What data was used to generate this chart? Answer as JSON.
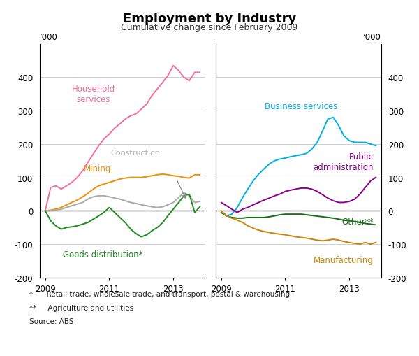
{
  "title": "Employment by Industry",
  "subtitle": "Cumulative change since February 2009",
  "ylabel": "’000",
  "ylim": [
    -200,
    500
  ],
  "yticks": [
    -200,
    -100,
    0,
    100,
    200,
    300,
    400
  ],
  "footnote1": "*      Retail trade, wholesale trade, and transport, postal & warehousing",
  "footnote2": "**     Agriculture and utilities",
  "footnote3": "Source: ABS",
  "left_panel": {
    "x_dates": [
      2009.0,
      2009.17,
      2009.33,
      2009.5,
      2009.67,
      2009.83,
      2010.0,
      2010.17,
      2010.33,
      2010.5,
      2010.67,
      2010.83,
      2011.0,
      2011.17,
      2011.33,
      2011.5,
      2011.67,
      2011.83,
      2012.0,
      2012.17,
      2012.33,
      2012.5,
      2012.67,
      2012.83,
      2013.0,
      2013.17,
      2013.33,
      2013.5,
      2013.67,
      2013.83
    ],
    "household_services": [
      0,
      70,
      75,
      65,
      75,
      85,
      100,
      120,
      145,
      170,
      195,
      215,
      230,
      248,
      260,
      275,
      285,
      290,
      305,
      320,
      345,
      365,
      385,
      405,
      435,
      420,
      400,
      390,
      415,
      415
    ],
    "mining": [
      0,
      2,
      5,
      10,
      18,
      25,
      32,
      42,
      52,
      65,
      75,
      80,
      85,
      90,
      95,
      98,
      100,
      100,
      100,
      102,
      105,
      108,
      110,
      108,
      105,
      103,
      100,
      98,
      108,
      108
    ],
    "construction": [
      0,
      0,
      2,
      5,
      10,
      15,
      20,
      25,
      35,
      42,
      45,
      45,
      42,
      38,
      35,
      30,
      25,
      22,
      18,
      15,
      12,
      10,
      12,
      18,
      25,
      40,
      55,
      45,
      25,
      28
    ],
    "goods_distribution": [
      0,
      -30,
      -45,
      -55,
      -50,
      -48,
      -45,
      -40,
      -35,
      -25,
      -15,
      -5,
      10,
      -5,
      -20,
      -35,
      -55,
      -68,
      -78,
      -72,
      -60,
      -50,
      -35,
      -15,
      5,
      25,
      45,
      50,
      -5,
      12
    ]
  },
  "right_panel": {
    "x_dates": [
      2009.0,
      2009.17,
      2009.33,
      2009.5,
      2009.67,
      2009.83,
      2010.0,
      2010.17,
      2010.33,
      2010.5,
      2010.67,
      2010.83,
      2011.0,
      2011.17,
      2011.33,
      2011.5,
      2011.67,
      2011.83,
      2012.0,
      2012.17,
      2012.33,
      2012.5,
      2012.67,
      2012.83,
      2013.0,
      2013.17,
      2013.33,
      2013.5,
      2013.67,
      2013.83
    ],
    "business_services": [
      -5,
      -15,
      -10,
      10,
      40,
      65,
      90,
      110,
      125,
      140,
      150,
      155,
      158,
      162,
      165,
      168,
      172,
      185,
      205,
      240,
      275,
      280,
      255,
      225,
      210,
      205,
      205,
      205,
      200,
      195
    ],
    "public_administration": [
      25,
      15,
      5,
      -5,
      5,
      10,
      18,
      25,
      32,
      38,
      45,
      50,
      58,
      62,
      65,
      68,
      68,
      65,
      58,
      48,
      38,
      30,
      25,
      25,
      28,
      35,
      50,
      70,
      90,
      100
    ],
    "other": [
      -5,
      -15,
      -20,
      -22,
      -22,
      -20,
      -20,
      -20,
      -20,
      -18,
      -15,
      -12,
      -10,
      -10,
      -10,
      -10,
      -12,
      -14,
      -16,
      -18,
      -20,
      -22,
      -25,
      -28,
      -30,
      -32,
      -35,
      -38,
      -40,
      -42
    ],
    "manufacturing": [
      0,
      -15,
      -22,
      -28,
      -35,
      -45,
      -52,
      -58,
      -62,
      -65,
      -68,
      -70,
      -72,
      -75,
      -78,
      -80,
      -82,
      -85,
      -88,
      -90,
      -88,
      -85,
      -88,
      -92,
      -95,
      -98,
      -100,
      -95,
      -100,
      -95
    ]
  },
  "colors": {
    "household_services": "#F06EA0",
    "mining": "#F0900A",
    "construction": "#AAAAAA",
    "goods_distribution": "#228B22",
    "business_services": "#00B0E0",
    "public_administration": "#8B008B",
    "other": "#1A6B1A",
    "manufacturing": "#C8860A"
  },
  "left_xlim": [
    2008.83,
    2014.0
  ],
  "right_xlim": [
    2008.83,
    2014.0
  ],
  "xticks": [
    2009,
    2011,
    2013
  ],
  "xticklabels": [
    "2009",
    "2011",
    "2013"
  ]
}
